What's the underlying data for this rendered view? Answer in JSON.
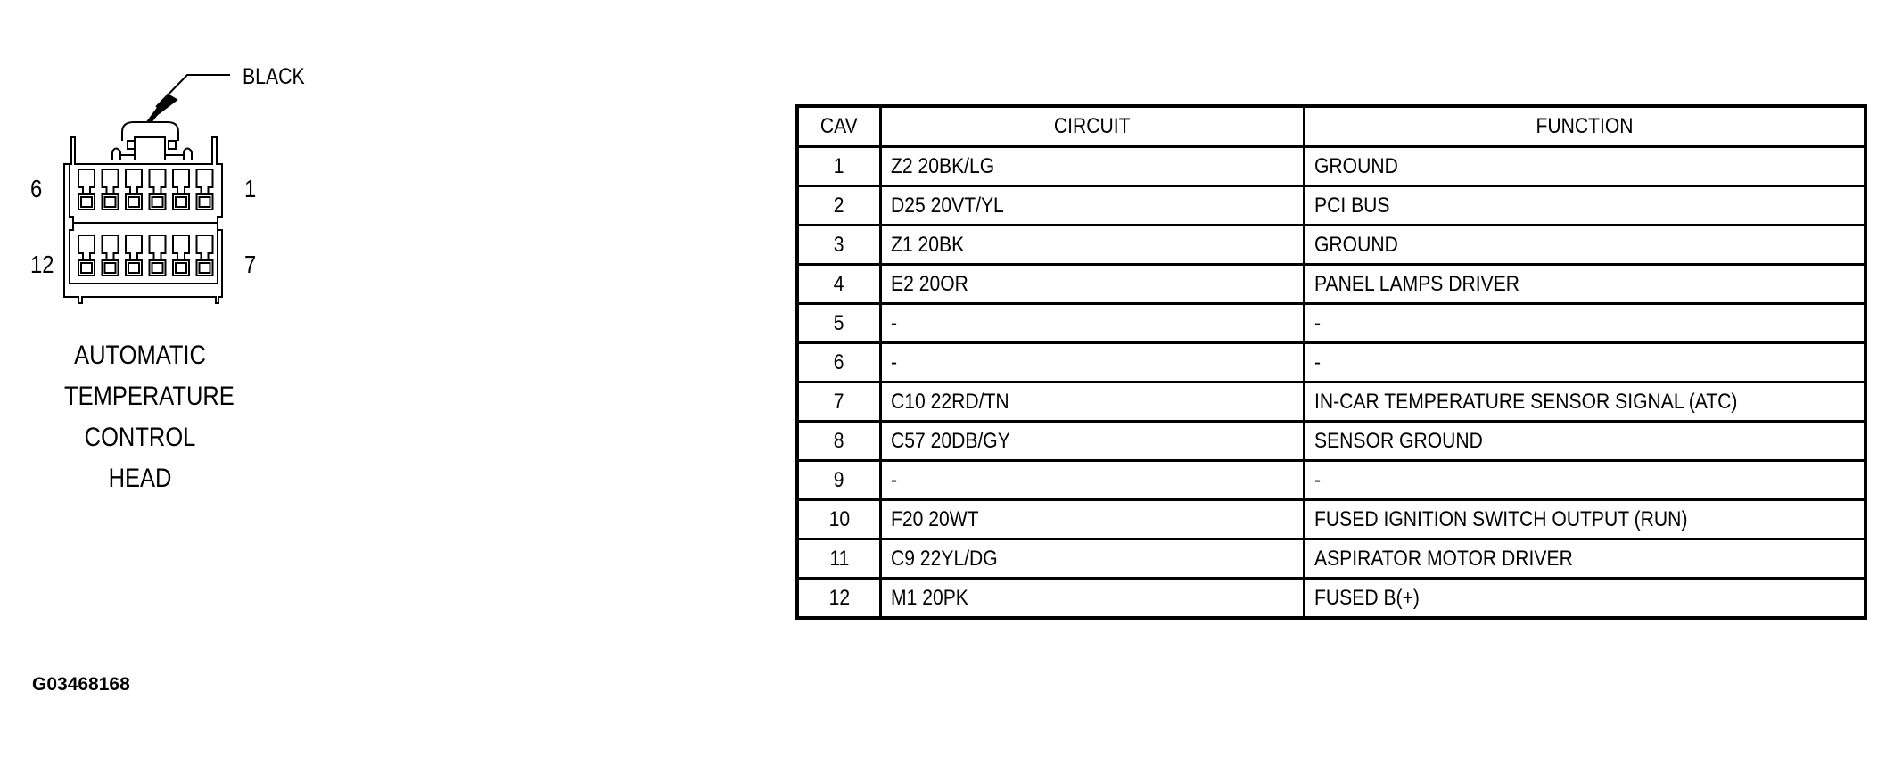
{
  "connector": {
    "color_label": "BLACK",
    "pin_labels": {
      "top_left": "6",
      "top_right": "1",
      "bottom_left": "12",
      "bottom_right": "7"
    },
    "name_lines": [
      "AUTOMATIC",
      "TEMPERATURE",
      "CONTROL",
      "HEAD"
    ],
    "cavity_count": 12
  },
  "figure_code": "G03468168",
  "table": {
    "headers": [
      "CAV",
      "CIRCUIT",
      "FUNCTION"
    ],
    "rows": [
      {
        "cav": "1",
        "circuit": "Z2 20BK/LG",
        "function": "GROUND"
      },
      {
        "cav": "2",
        "circuit": "D25 20VT/YL",
        "function": "PCI BUS"
      },
      {
        "cav": "3",
        "circuit": "Z1 20BK",
        "function": "GROUND"
      },
      {
        "cav": "4",
        "circuit": "E2 20OR",
        "function": "PANEL LAMPS DRIVER"
      },
      {
        "cav": "5",
        "circuit": "-",
        "function": "-"
      },
      {
        "cav": "6",
        "circuit": "-",
        "function": "-"
      },
      {
        "cav": "7",
        "circuit": "C10 22RD/TN",
        "function": "IN-CAR TEMPERATURE SENSOR SIGNAL (ATC)"
      },
      {
        "cav": "8",
        "circuit": "C57 20DB/GY",
        "function": "SENSOR GROUND"
      },
      {
        "cav": "9",
        "circuit": "-",
        "function": "-"
      },
      {
        "cav": "10",
        "circuit": "F20 20WT",
        "function": "FUSED IGNITION SWITCH OUTPUT (RUN)"
      },
      {
        "cav": "11",
        "circuit": "C9 22YL/DG",
        "function": "ASPIRATOR MOTOR DRIVER"
      },
      {
        "cav": "12",
        "circuit": "M1 20PK",
        "function": "FUSED B(+)"
      }
    ]
  }
}
